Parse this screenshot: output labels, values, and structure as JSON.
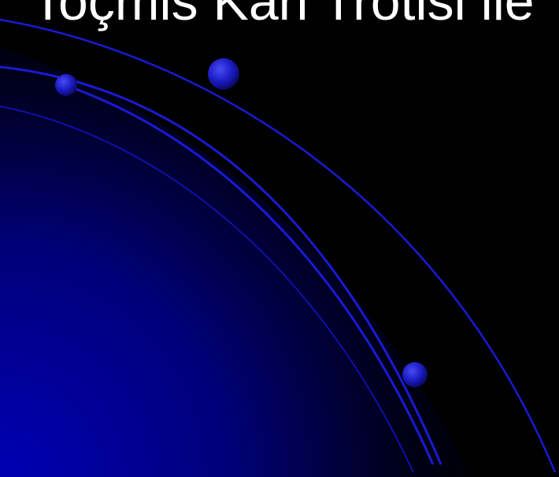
{
  "slide": {
    "title": "Toçmis Kan Trotisi ile"
  },
  "colors": {
    "background": "#000000",
    "accent_blue": "#1a1ad6",
    "deep_blue": "#0000a8",
    "title_text": "#ffffff"
  },
  "icons": [
    "orb-small",
    "orb-large",
    "orb-bottom"
  ]
}
